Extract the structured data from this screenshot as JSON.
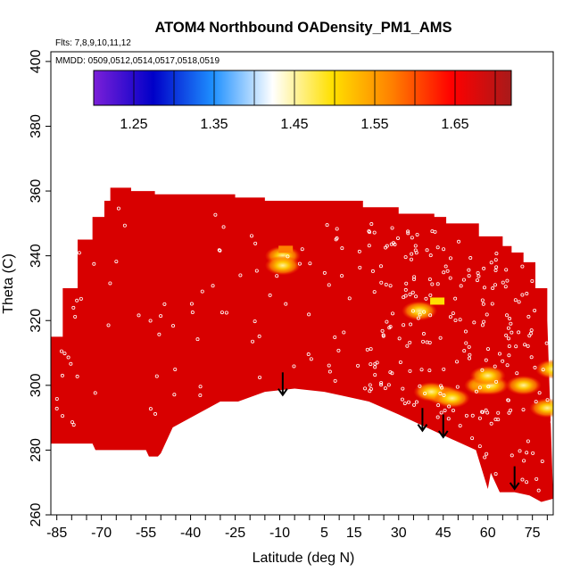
{
  "chart_data": {
    "type": "heatmap",
    "title": "ATOM4 Northbound OADensity_PM1_AMS",
    "flights_note": "Flts: 7,8,9,10,11,12",
    "dates_note": "MMDD: 0509,0512,0514,0517,0518,0519",
    "xlabel": "Latitude (deg N)",
    "ylabel": "Theta (C)",
    "xlim": [
      -87,
      82
    ],
    "ylim": [
      260,
      403
    ],
    "x_tick_labels": [
      -85,
      -70,
      -55,
      -40,
      -25,
      -10,
      5,
      15,
      30,
      45,
      60,
      75
    ],
    "x_minor_ticks": [
      -85,
      -80,
      -75,
      -70,
      -65,
      -60,
      -55,
      -50,
      -45,
      -40,
      -35,
      -30,
      -25,
      -20,
      -15,
      -10,
      -5,
      0,
      5,
      10,
      15,
      20,
      25,
      30,
      35,
      40,
      45,
      50,
      55,
      60,
      65,
      70,
      75,
      80
    ],
    "y_ticks": [
      260,
      280,
      300,
      320,
      340,
      360,
      380,
      400
    ],
    "colorbar": {
      "min": 1.2,
      "max": 1.72,
      "tick_labels": [
        "1.25",
        "1.35",
        "1.45",
        "1.55",
        "1.65"
      ],
      "tick_values": [
        1.25,
        1.35,
        1.45,
        1.55,
        1.65
      ],
      "color_stops": [
        "#7b1fd8",
        "#0000c8",
        "#1e90ff",
        "#ffffff",
        "#ffe000",
        "#ff8000",
        "#ff0000",
        "#a81a1a"
      ]
    },
    "field": {
      "base_color": "#d80000",
      "top_boundary": [
        [
          -87,
          315
        ],
        [
          -83,
          330
        ],
        [
          -78,
          345
        ],
        [
          -73,
          352
        ],
        [
          -69,
          357
        ],
        [
          -67,
          361
        ],
        [
          -60,
          360
        ],
        [
          -52,
          359
        ],
        [
          -40,
          359
        ],
        [
          -33,
          359
        ],
        [
          -25,
          358
        ],
        [
          -20,
          358
        ],
        [
          -15,
          357
        ],
        [
          -5,
          357
        ],
        [
          10,
          357
        ],
        [
          18,
          355
        ],
        [
          28,
          355
        ],
        [
          30,
          353
        ],
        [
          42,
          352
        ],
        [
          46,
          350
        ],
        [
          54,
          350
        ],
        [
          57,
          346
        ],
        [
          61,
          346
        ],
        [
          65,
          343
        ],
        [
          68,
          341
        ],
        [
          72,
          338
        ],
        [
          76,
          330
        ],
        [
          80,
          320
        ]
      ],
      "bottom_boundary": [
        [
          -87,
          282
        ],
        [
          -73,
          282
        ],
        [
          -72,
          280
        ],
        [
          -60,
          280
        ],
        [
          -55,
          280
        ],
        [
          -54,
          278
        ],
        [
          -51,
          278
        ],
        [
          -50,
          279
        ],
        [
          -46,
          287
        ],
        [
          -30,
          295
        ],
        [
          -24,
          295
        ],
        [
          -15,
          298
        ],
        [
          -5,
          299
        ],
        [
          5,
          298
        ],
        [
          20,
          295
        ],
        [
          30,
          291
        ],
        [
          44,
          285
        ],
        [
          56,
          280
        ],
        [
          58,
          274
        ],
        [
          60,
          268
        ],
        [
          61,
          273
        ],
        [
          64,
          267
        ],
        [
          69,
          267
        ],
        [
          74,
          266
        ],
        [
          78,
          264
        ],
        [
          82,
          265
        ]
      ]
    },
    "hotspots": [
      {
        "lat": -9,
        "theta": 340,
        "value": 1.62
      },
      {
        "lat": -9,
        "theta": 337,
        "value": 1.58
      },
      {
        "lat": 37,
        "theta": 323,
        "value": 1.6
      },
      {
        "lat": 45,
        "theta": 297,
        "value": 1.6
      },
      {
        "lat": 41,
        "theta": 298,
        "value": 1.56
      },
      {
        "lat": 48,
        "theta": 296,
        "value": 1.57
      },
      {
        "lat": 58,
        "theta": 300,
        "value": 1.62
      },
      {
        "lat": 61,
        "theta": 300,
        "value": 1.6
      },
      {
        "lat": 60,
        "theta": 303,
        "value": 1.58
      },
      {
        "lat": 72,
        "theta": 300,
        "value": 1.62
      },
      {
        "lat": 80,
        "theta": 293,
        "value": 1.6
      },
      {
        "lat": 82,
        "theta": 305,
        "value": 1.62
      },
      {
        "lat": 43,
        "theta": 326,
        "value": 1.43
      },
      {
        "lat": -8,
        "theta": 342,
        "value": 1.5
      }
    ],
    "arrows": [
      {
        "lat": -9,
        "theta_top": 304,
        "theta_tip": 297
      },
      {
        "lat": 38,
        "theta_top": 293,
        "theta_tip": 286
      },
      {
        "lat": 45,
        "theta_top": 291,
        "theta_tip": 284
      },
      {
        "lat": 69,
        "theta_top": 275,
        "theta_tip": 268
      }
    ],
    "grid": false,
    "legend_placement": "top-inside"
  }
}
